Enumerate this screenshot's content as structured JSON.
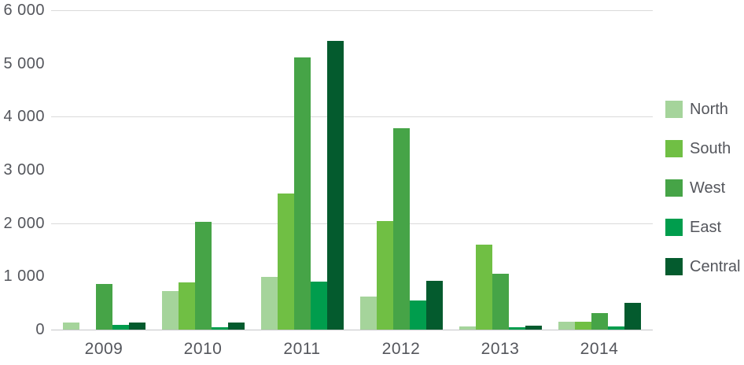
{
  "chart_data": {
    "type": "bar",
    "title": "",
    "categories": [
      "2009",
      "2010",
      "2011",
      "2012",
      "2013",
      "2014"
    ],
    "series": [
      {
        "name": "North",
        "color": "#a5d49b",
        "values": [
          140,
          730,
          990,
          620,
          60,
          150
        ]
      },
      {
        "name": "South",
        "color": "#70bf44",
        "values": [
          0,
          890,
          2560,
          2040,
          1600,
          150
        ]
      },
      {
        "name": "West",
        "color": "#46a447",
        "values": [
          860,
          2030,
          5120,
          3790,
          1050,
          310
        ]
      },
      {
        "name": "East",
        "color": "#009d4d",
        "values": [
          90,
          40,
          900,
          550,
          50,
          60
        ]
      },
      {
        "name": "Central",
        "color": "#045b2e",
        "values": [
          140,
          130,
          5420,
          920,
          70,
          500
        ]
      }
    ],
    "xlabel": "",
    "ylabel": "",
    "ylim": [
      0,
      6000
    ],
    "y_tick_labels": [
      "6 000",
      "5 000",
      "4 000",
      "3 000",
      "2 000",
      "1 000",
      "0"
    ],
    "y_tick_values": [
      6000,
      5000,
      4000,
      3000,
      2000,
      1000,
      0
    ],
    "gridlines_at": [
      6000,
      4000,
      2000,
      0
    ],
    "grid": "horizontal-even-thousands-only",
    "legend_position": "right",
    "text_color": "#54565c",
    "gridline_color": "#dadada",
    "baseline_color": "#c5c6c8",
    "background_color": "#ffffff"
  }
}
